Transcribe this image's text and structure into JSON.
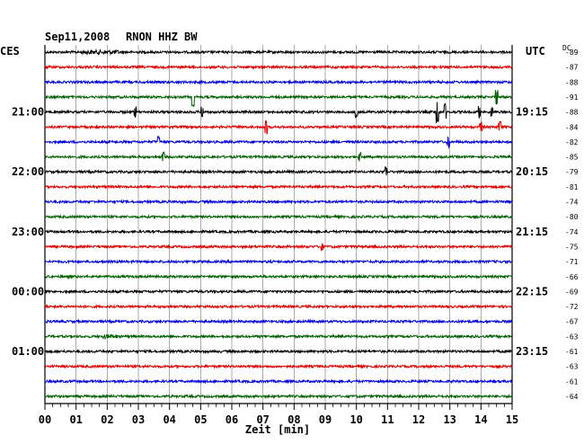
{
  "header": {
    "date": "Sep11,2008",
    "station": "RNON HHZ BW",
    "left_tz": "CES",
    "right_tz": "UTC",
    "dc_label": "DC"
  },
  "colors": {
    "traces": [
      "#000000",
      "#e00000",
      "#0000e0",
      "#006000"
    ],
    "grid": "#000000"
  },
  "chart_data": {
    "type": "line",
    "title": "Sep11,2008   RNON HHZ BW",
    "xlabel": "Zeit [min]",
    "ylabel": "",
    "xlim": [
      0,
      15
    ],
    "x_ticks": [
      "00",
      "01",
      "02",
      "03",
      "04",
      "05",
      "06",
      "07",
      "08",
      "09",
      "10",
      "11",
      "12",
      "13",
      "14",
      "15"
    ],
    "minor_ticks_per_minute": 4,
    "row_count": 24,
    "left_time_labels": [
      {
        "row": 4,
        "label": "21:00"
      },
      {
        "row": 8,
        "label": "22:00"
      },
      {
        "row": 12,
        "label": "23:00"
      },
      {
        "row": 16,
        "label": "00:00"
      },
      {
        "row": 20,
        "label": "01:00"
      }
    ],
    "right_time_labels": [
      {
        "row": 4,
        "label": "19:15"
      },
      {
        "row": 8,
        "label": "20:15"
      },
      {
        "row": 12,
        "label": "21:15"
      },
      {
        "row": 16,
        "label": "22:15"
      },
      {
        "row": 20,
        "label": "23:15"
      }
    ],
    "dc_offsets": [
      "-89",
      "-87",
      "-88",
      "-91",
      "-88",
      "-84",
      "-82",
      "-85",
      "-79",
      "-81",
      "-74",
      "-80",
      "-74",
      "-75",
      "-71",
      "-66",
      "-69",
      "-72",
      "-67",
      "-63",
      "-61",
      "-63",
      "-61",
      "-64"
    ],
    "events": [
      {
        "row": 0,
        "minute": 1.8,
        "amp": 4,
        "width": 1.2
      },
      {
        "row": 3,
        "minute": 4.75,
        "amp": 9,
        "width": 0.05
      },
      {
        "row": 3,
        "minute": 14.5,
        "amp": 7,
        "width": 0.05
      },
      {
        "row": 4,
        "minute": 2.9,
        "amp": 5,
        "width": 0.05
      },
      {
        "row": 4,
        "minute": 5.05,
        "amp": 5,
        "width": 0.05
      },
      {
        "row": 4,
        "minute": 10.0,
        "amp": 5,
        "width": 0.05
      },
      {
        "row": 4,
        "minute": 12.6,
        "amp": 11,
        "width": 0.05
      },
      {
        "row": 4,
        "minute": 12.85,
        "amp": 8,
        "width": 0.05
      },
      {
        "row": 4,
        "minute": 13.95,
        "amp": 6,
        "width": 0.05
      },
      {
        "row": 4,
        "minute": 14.35,
        "amp": 5,
        "width": 0.05
      },
      {
        "row": 5,
        "minute": 7.1,
        "amp": 7,
        "width": 0.05
      },
      {
        "row": 5,
        "minute": 14.0,
        "amp": 5,
        "width": 0.05
      },
      {
        "row": 5,
        "minute": 14.6,
        "amp": 5,
        "width": 0.05
      },
      {
        "row": 6,
        "minute": 3.65,
        "amp": 5,
        "width": 0.05
      },
      {
        "row": 6,
        "minute": 12.95,
        "amp": 5,
        "width": 0.05
      },
      {
        "row": 7,
        "minute": 3.8,
        "amp": 4,
        "width": 0.05
      },
      {
        "row": 7,
        "minute": 10.1,
        "amp": 4,
        "width": 0.05
      },
      {
        "row": 8,
        "minute": 10.95,
        "amp": 5,
        "width": 0.05
      },
      {
        "row": 13,
        "minute": 8.9,
        "amp": 3,
        "width": 0.05
      },
      {
        "row": 19,
        "minute": 2.1,
        "amp": 4,
        "width": 0.5
      }
    ]
  }
}
